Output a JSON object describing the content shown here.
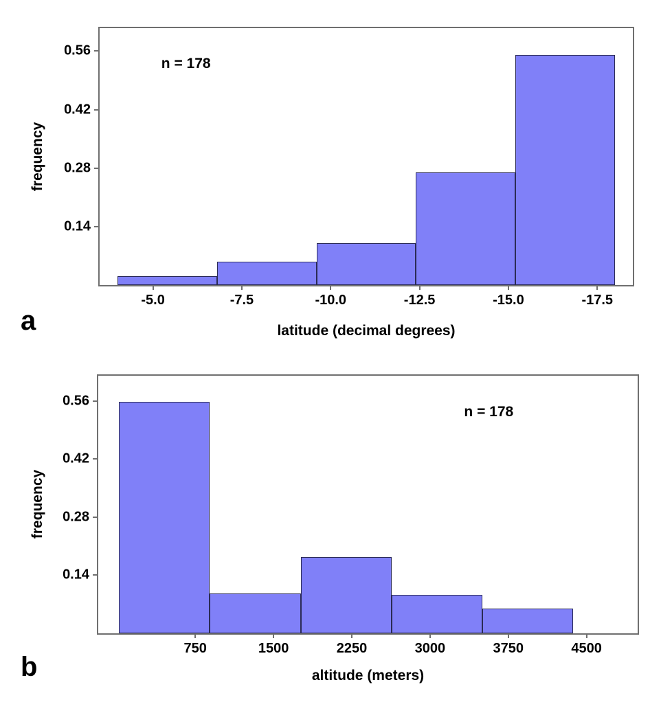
{
  "figure": {
    "background": "#ffffff",
    "bar_fill": "#8080f8",
    "bar_border": "#2b2b55",
    "frame_color": "#6f6f6f",
    "text_color": "#000000"
  },
  "chart_data": [
    {
      "type": "bar",
      "variant": "histogram",
      "panel_label": "a",
      "annotation": "n = 178",
      "xlabel": "latitude (decimal degrees)",
      "ylabel": "frequency",
      "x_axis_reversed": true,
      "x_domain": [
        -3.5,
        -18.5
      ],
      "y_max": 0.615,
      "grid": false,
      "bin_edges": [
        -4.0,
        -6.8,
        -9.6,
        -12.4,
        -15.2,
        -18.0
      ],
      "frequencies": [
        0.022,
        0.056,
        0.101,
        0.27,
        0.551
      ],
      "x_ticks": [
        {
          "value": -5.0,
          "label": "-5.0"
        },
        {
          "value": -7.5,
          "label": "-7.5"
        },
        {
          "value": -10.0,
          "label": "-10.0"
        },
        {
          "value": -12.5,
          "label": "-12.5"
        },
        {
          "value": -15.0,
          "label": "-15.0"
        },
        {
          "value": -17.5,
          "label": "-17.5"
        }
      ],
      "y_ticks": [
        {
          "value": 0.14,
          "label": "0.14"
        },
        {
          "value": 0.28,
          "label": "0.28"
        },
        {
          "value": 0.42,
          "label": "0.42"
        },
        {
          "value": 0.56,
          "label": "0.56"
        }
      ]
    },
    {
      "type": "bar",
      "variant": "histogram",
      "panel_label": "b",
      "annotation": "n = 178",
      "xlabel": "altitude (meters)",
      "ylabel": "frequency",
      "x_axis_reversed": false,
      "x_domain": [
        -180,
        4990
      ],
      "y_max": 0.621,
      "grid": false,
      "bin_edges": [
        20,
        890,
        1760,
        2630,
        3500,
        4370
      ],
      "frequencies": [
        0.558,
        0.096,
        0.184,
        0.092,
        0.059
      ],
      "x_ticks": [
        {
          "value": 750,
          "label": "750"
        },
        {
          "value": 1500,
          "label": "1500"
        },
        {
          "value": 2250,
          "label": "2250"
        },
        {
          "value": 3000,
          "label": "3000"
        },
        {
          "value": 3750,
          "label": "3750"
        },
        {
          "value": 4500,
          "label": "4500"
        }
      ],
      "y_ticks": [
        {
          "value": 0.14,
          "label": "0.14"
        },
        {
          "value": 0.28,
          "label": "0.28"
        },
        {
          "value": 0.42,
          "label": "0.42"
        },
        {
          "value": 0.56,
          "label": "0.56"
        }
      ]
    }
  ]
}
